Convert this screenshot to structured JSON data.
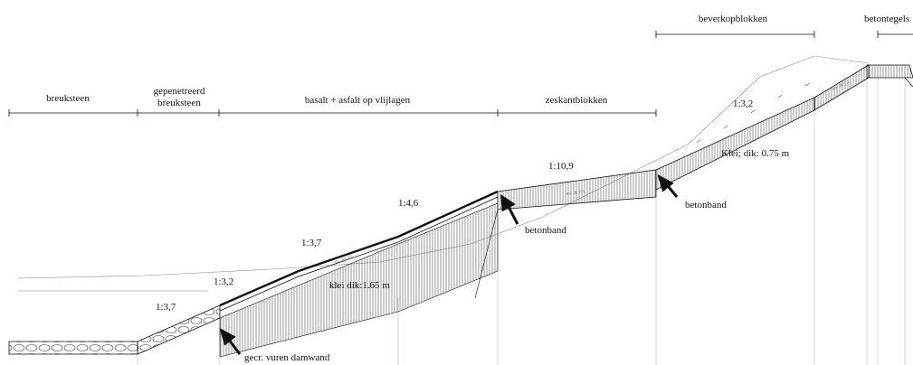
{
  "zones": {
    "breuksteen": "breuksteen",
    "gepenetreerd_1": "gepenetreerd",
    "gepenetreerd_2": "breuksteen",
    "basalt": "basalt + asfalt op vlijlagen",
    "zeskant": "zeskantblokken",
    "beverkop": "beverkopblokken",
    "betontegels": "betontegels"
  },
  "slopes": {
    "s1": "1:3,7",
    "s2": "1:3,2",
    "s3": "1:3,7",
    "s4": "1:4,6",
    "s5": "1:10,9",
    "s6": "1:3,2"
  },
  "annotations": {
    "klei_lower": "klei  dik:1.65 m",
    "klei_upper": "Klei; dik: 0.75 m",
    "betonband_1": "betonband",
    "betonband_2": "betonband",
    "damwand": "gecr. vuren damwand"
  },
  "colors": {
    "line": "#111111",
    "hatch": "#555555",
    "thin": "#999999"
  }
}
